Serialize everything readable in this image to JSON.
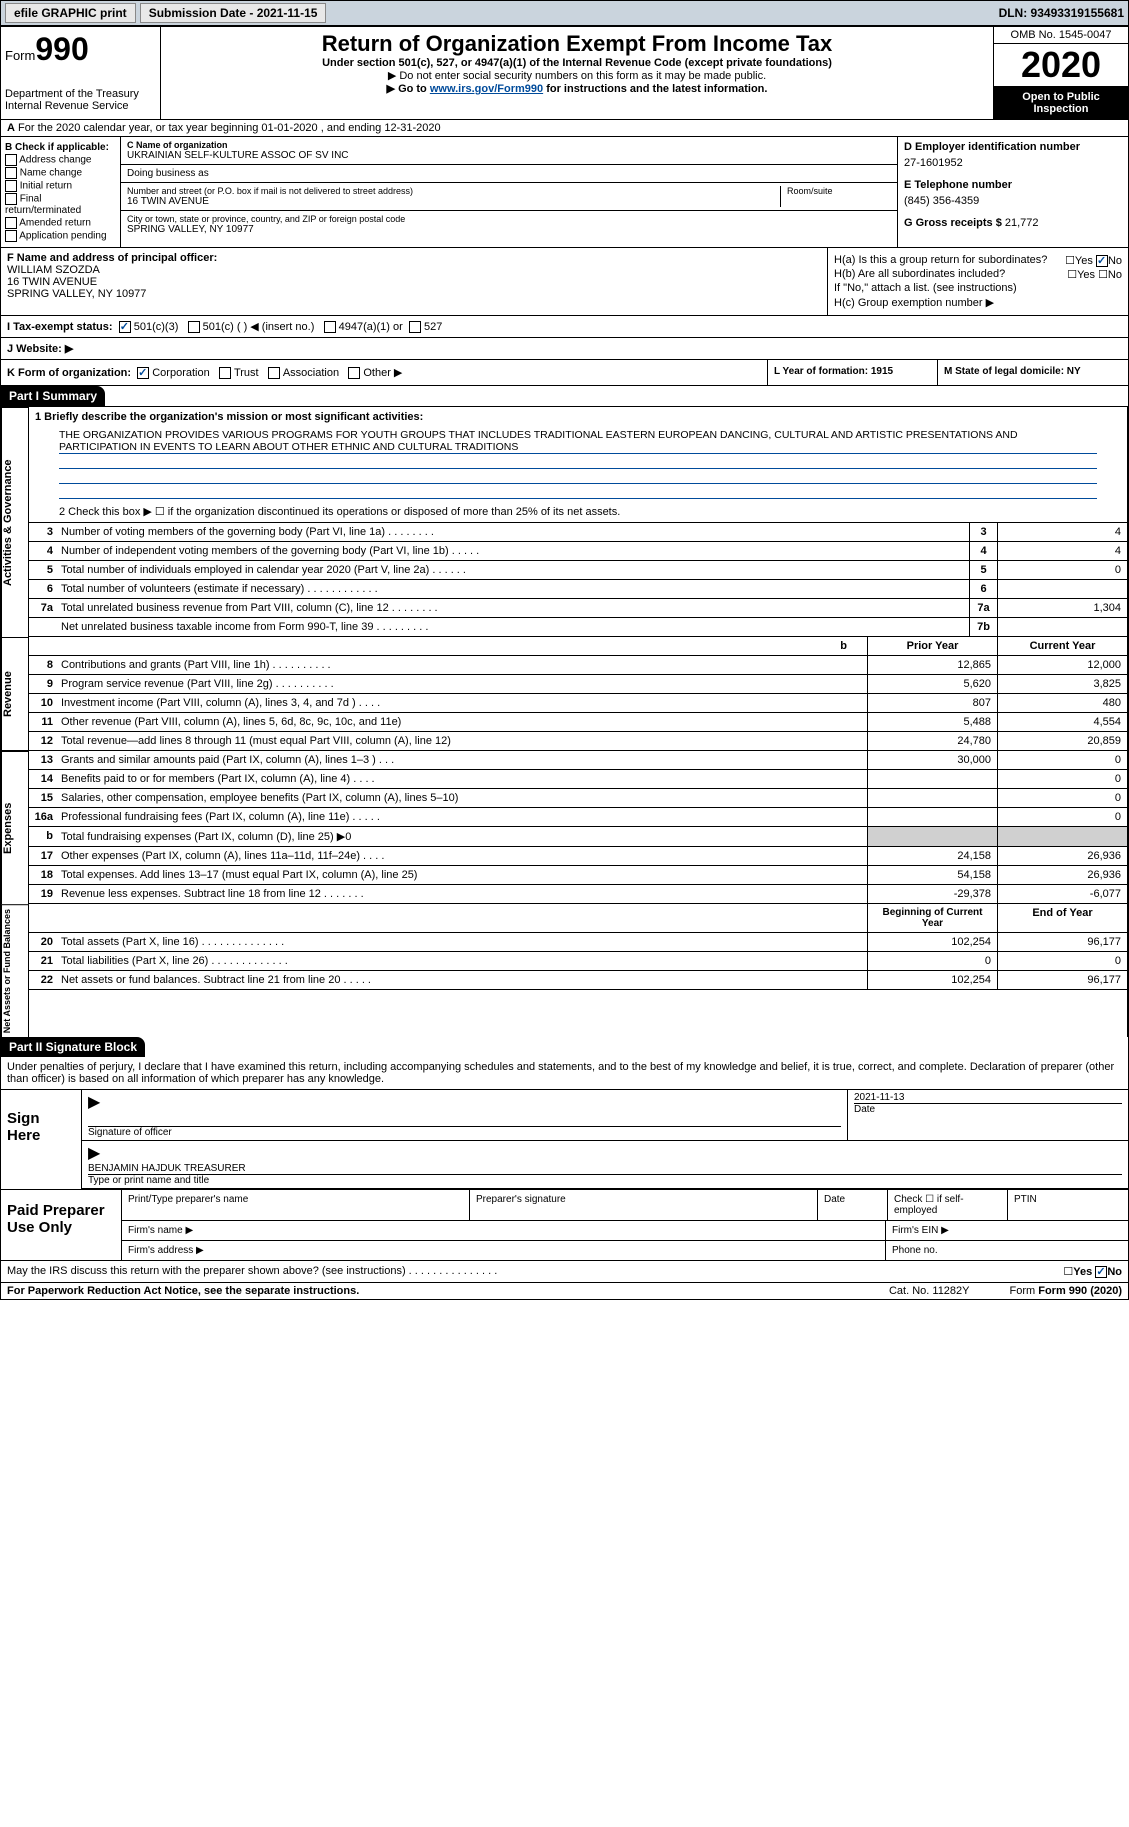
{
  "topbar": {
    "efile": "efile GRAPHIC print",
    "submission": "Submission Date - 2021-11-15",
    "dln": "DLN: 93493319155681"
  },
  "header": {
    "form_label": "Form",
    "form_num": "990",
    "title": "Return of Organization Exempt From Income Tax",
    "subtitle": "Under section 501(c), 527, or 4947(a)(1) of the Internal Revenue Code (except private foundations)",
    "note1": "▶ Do not enter social security numbers on this form as it may be made public.",
    "note2_pre": "▶ Go to ",
    "note2_link": "www.irs.gov/Form990",
    "note2_post": " for instructions and the latest information.",
    "dept": "Department of the Treasury\nInternal Revenue Service",
    "omb": "OMB No. 1545-0047",
    "year": "2020",
    "inspect": "Open to Public\nInspection"
  },
  "line_a": "For the 2020 calendar year, or tax year beginning 01-01-2020   , and ending 12-31-2020",
  "col_b": {
    "head": "B Check if applicable:",
    "items": [
      "Address change",
      "Name change",
      "Initial return",
      "Final return/terminated",
      "Amended return",
      "Application pending"
    ]
  },
  "col_c": {
    "name_lbl": "C Name of organization",
    "name": "UKRAINIAN SELF-KULTURE ASSOC OF SV INC",
    "dba_lbl": "Doing business as",
    "addr_lbl": "Number and street (or P.O. box if mail is not delivered to street address)",
    "room_lbl": "Room/suite",
    "addr": "16 TWIN AVENUE",
    "city_lbl": "City or town, state or province, country, and ZIP or foreign postal code",
    "city": "SPRING VALLEY, NY  10977"
  },
  "col_d": {
    "ein_lbl": "D Employer identification number",
    "ein": "27-1601952",
    "tel_lbl": "E Telephone number",
    "tel": "(845) 356-4359",
    "gross_lbl": "G Gross receipts $",
    "gross": "21,772"
  },
  "col_f": {
    "lbl": "F Name and address of principal officer:",
    "name": "WILLIAM SZOZDA",
    "addr1": "16 TWIN AVENUE",
    "addr2": "SPRING VALLEY, NY  10977"
  },
  "col_h": {
    "ha": "H(a)  Is this a group return for subordinates?",
    "hb": "H(b)  Are all subordinates included?",
    "hb_note": "If \"No,\" attach a list. (see instructions)",
    "hc": "H(c)  Group exemption number ▶"
  },
  "line_i": {
    "lbl": "I    Tax-exempt status:",
    "opts": [
      "501(c)(3)",
      "501(c) (  ) ◀ (insert no.)",
      "4947(a)(1) or",
      "527"
    ]
  },
  "line_j": "J    Website: ▶",
  "line_k": {
    "lbl": "K Form of organization:",
    "opts": [
      "Corporation",
      "Trust",
      "Association",
      "Other ▶"
    ],
    "year_lbl": "L Year of formation: 1915",
    "state_lbl": "M State of legal domicile: NY"
  },
  "part1": {
    "head": "Part I      Summary",
    "q1_lbl": "1  Briefly describe the organization's mission or most significant activities:",
    "q1_text": "THE ORGANIZATION PROVIDES VARIOUS PROGRAMS FOR YOUTH GROUPS THAT INCLUDES TRADITIONAL EASTERN EUROPEAN DANCING, CULTURAL AND ARTISTIC PRESENTATIONS AND PARTICIPATION IN EVENTS TO LEARN ABOUT OTHER ETHNIC AND CULTURAL TRADITIONS",
    "q2": "2  Check this box ▶ ☐  if the organization discontinued its operations or disposed of more than 25% of its net assets.",
    "rows_ag": [
      {
        "n": "3",
        "d": "Number of voting members of the governing body (Part VI, line 1a)  .   .   .   .   .   .   .   .",
        "b": "3",
        "v": "4"
      },
      {
        "n": "4",
        "d": "Number of independent voting members of the governing body (Part VI, line 1b)  .   .   .   .   .",
        "b": "4",
        "v": "4"
      },
      {
        "n": "5",
        "d": "Total number of individuals employed in calendar year 2020 (Part V, line 2a)  .   .   .   .   .   .",
        "b": "5",
        "v": "0"
      },
      {
        "n": "6",
        "d": "Total number of volunteers (estimate if necessary)  .   .   .   .   .   .   .   .   .   .   .   .",
        "b": "6",
        "v": ""
      },
      {
        "n": "7a",
        "d": "Total unrelated business revenue from Part VIII, column (C), line 12  .   .   .   .   .   .   .   .",
        "b": "7a",
        "v": "1,304"
      },
      {
        "n": "",
        "d": "Net unrelated business taxable income from Form 990-T, line 39  .   .   .   .   .   .   .   .   .",
        "b": "7b",
        "v": ""
      }
    ],
    "prior_head": "Prior Year",
    "current_head": "Current Year",
    "rows_rev": [
      {
        "n": "8",
        "d": "Contributions and grants (Part VIII, line 1h)  .   .   .   .   .   .   .   .   .   .",
        "p": "12,865",
        "c": "12,000"
      },
      {
        "n": "9",
        "d": "Program service revenue (Part VIII, line 2g)  .   .   .   .   .   .   .   .   .   .",
        "p": "5,620",
        "c": "3,825"
      },
      {
        "n": "10",
        "d": "Investment income (Part VIII, column (A), lines 3, 4, and 7d )  .   .   .   .",
        "p": "807",
        "c": "480"
      },
      {
        "n": "11",
        "d": "Other revenue (Part VIII, column (A), lines 5, 6d, 8c, 9c, 10c, and 11e)",
        "p": "5,488",
        "c": "4,554"
      },
      {
        "n": "12",
        "d": "Total revenue—add lines 8 through 11 (must equal Part VIII, column (A), line 12)",
        "p": "24,780",
        "c": "20,859"
      }
    ],
    "rows_exp": [
      {
        "n": "13",
        "d": "Grants and similar amounts paid (Part IX, column (A), lines 1–3 )  .   .   .",
        "p": "30,000",
        "c": "0"
      },
      {
        "n": "14",
        "d": "Benefits paid to or for members (Part IX, column (A), line 4)  .   .   .   .",
        "p": "",
        "c": "0"
      },
      {
        "n": "15",
        "d": "Salaries, other compensation, employee benefits (Part IX, column (A), lines 5–10)",
        "p": "",
        "c": "0"
      },
      {
        "n": "16a",
        "d": "Professional fundraising fees (Part IX, column (A), line 11e)  .   .   .   .   .",
        "p": "",
        "c": "0"
      },
      {
        "n": "b",
        "d": "Total fundraising expenses (Part IX, column (D), line 25) ▶0",
        "p": "SHADE",
        "c": "SHADE"
      },
      {
        "n": "17",
        "d": "Other expenses (Part IX, column (A), lines 11a–11d, 11f–24e)  .   .   .   .",
        "p": "24,158",
        "c": "26,936"
      },
      {
        "n": "18",
        "d": "Total expenses. Add lines 13–17 (must equal Part IX, column (A), line 25)",
        "p": "54,158",
        "c": "26,936"
      },
      {
        "n": "19",
        "d": "Revenue less expenses. Subtract line 18 from line 12  .   .   .   .   .   .   .",
        "p": "-29,378",
        "c": "-6,077"
      }
    ],
    "begin_head": "Beginning of Current Year",
    "end_head": "End of Year",
    "rows_net": [
      {
        "n": "20",
        "d": "Total assets (Part X, line 16)  .   .   .   .   .   .   .   .   .   .   .   .   .   .",
        "p": "102,254",
        "c": "96,177"
      },
      {
        "n": "21",
        "d": "Total liabilities (Part X, line 26)  .   .   .   .   .   .   .   .   .   .   .   .   .",
        "p": "0",
        "c": "0"
      },
      {
        "n": "22",
        "d": "Net assets or fund balances. Subtract line 21 from line 20  .   .   .   .   .",
        "p": "102,254",
        "c": "96,177"
      }
    ]
  },
  "part2": {
    "head": "Part II     Signature Block",
    "perjury": "Under penalties of perjury, I declare that I have examined this return, including accompanying schedules and statements, and to the best of my knowledge and belief, it is true, correct, and complete. Declaration of preparer (other than officer) is based on all information of which preparer has any knowledge.",
    "sign_here": "Sign Here",
    "sig_officer": "Signature of officer",
    "date": "Date",
    "sig_date": "2021-11-13",
    "name_title": "BENJAMIN HAJDUK TREASURER",
    "type_name": "Type or print name and title",
    "paid": "Paid Preparer Use Only",
    "prep_name": "Print/Type preparer's name",
    "prep_sig": "Preparer's signature",
    "prep_date": "Date",
    "check_self": "Check ☐ if self-employed",
    "ptin": "PTIN",
    "firm_name": "Firm's name  ▶",
    "firm_ein": "Firm's EIN ▶",
    "firm_addr": "Firm's address ▶",
    "phone": "Phone no."
  },
  "footer": {
    "q": "May the IRS discuss this return with the preparer shown above? (see instructions)  .   .   .   .   .   .   .   .   .   .   .   .   .   .   .",
    "paperwork": "For Paperwork Reduction Act Notice, see the separate instructions.",
    "cat": "Cat. No. 11282Y",
    "form": "Form 990 (2020)"
  }
}
